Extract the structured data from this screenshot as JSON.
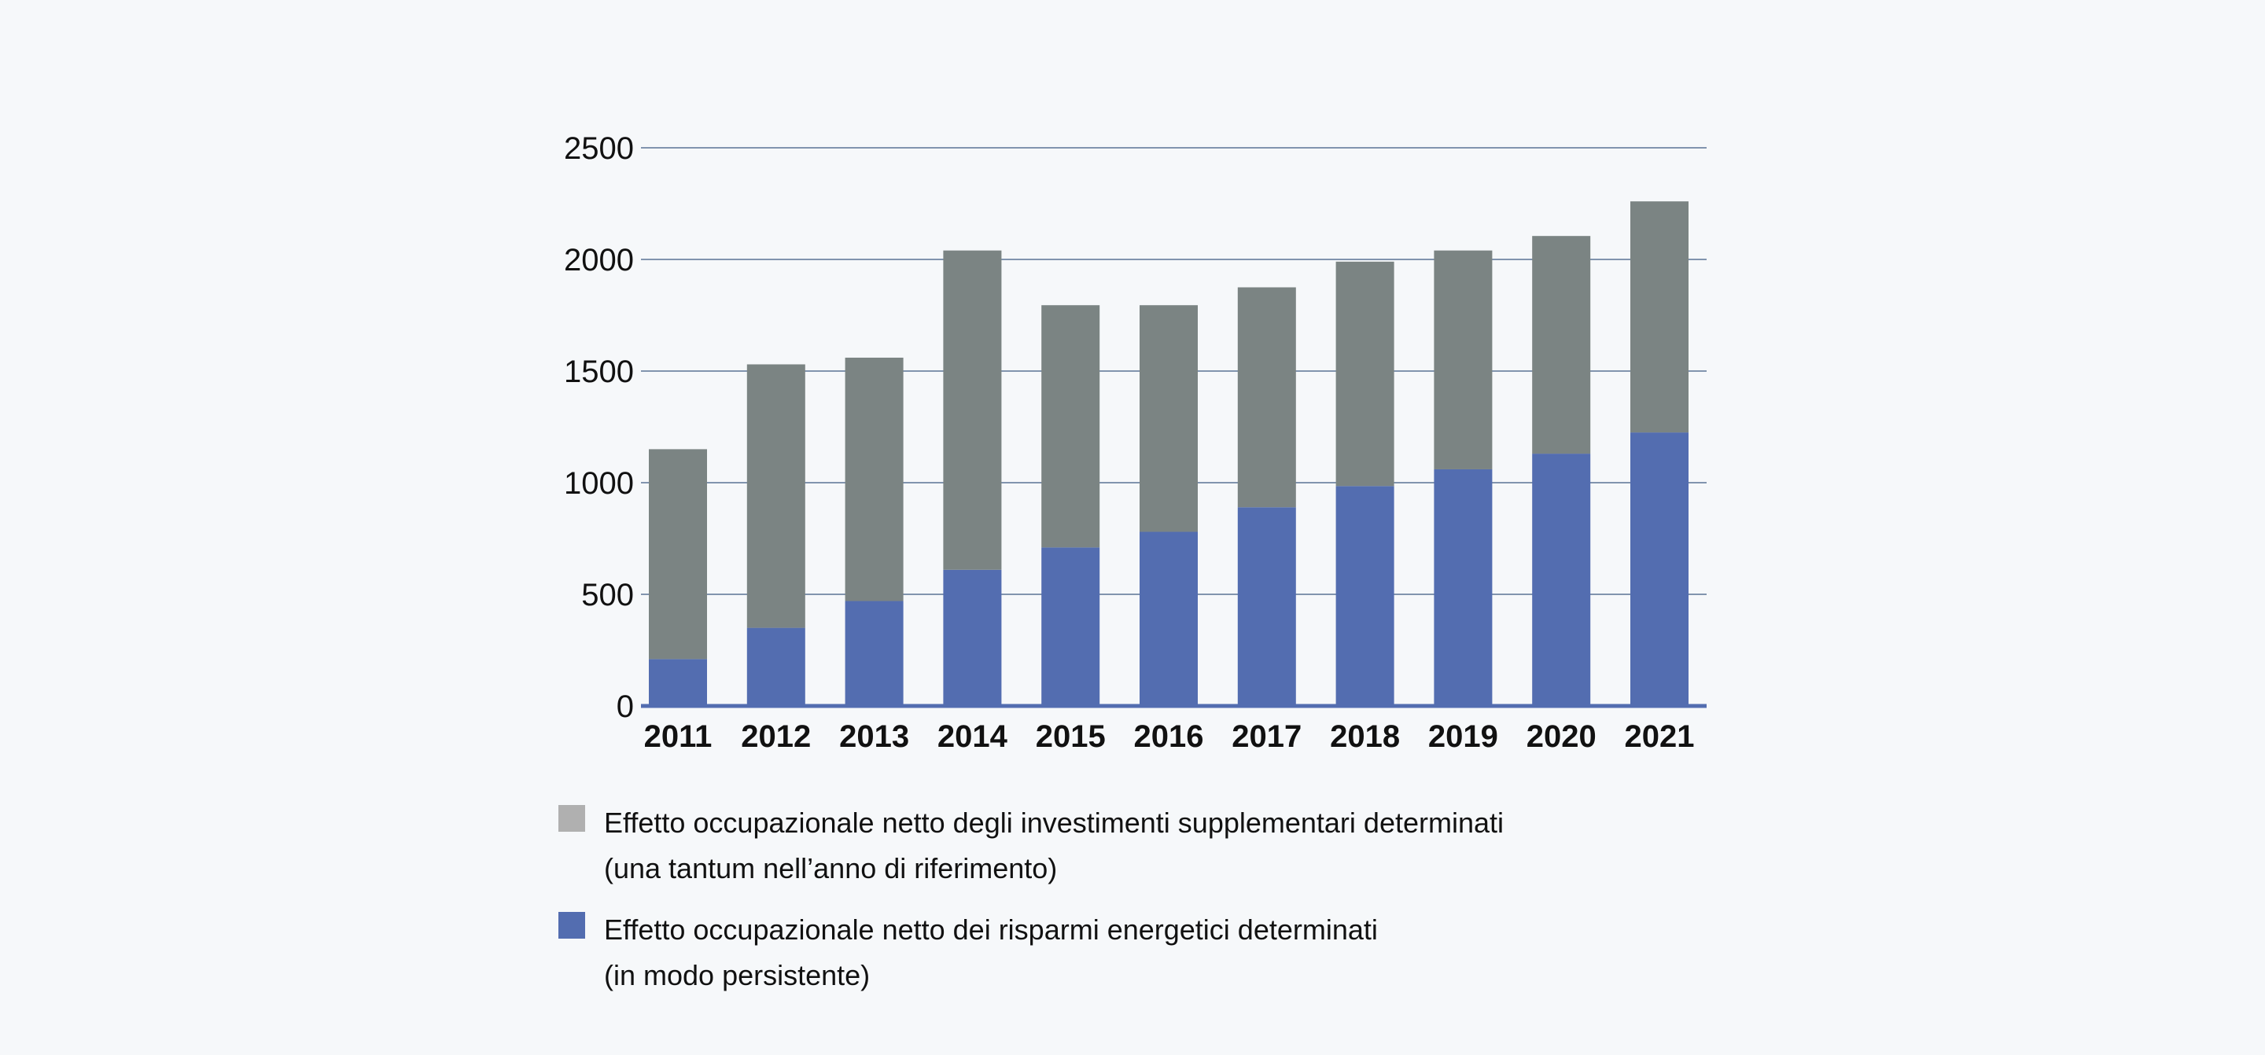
{
  "chart_data": {
    "type": "bar",
    "stacked": true,
    "categories": [
      "2011",
      "2012",
      "2013",
      "2014",
      "2015",
      "2016",
      "2017",
      "2018",
      "2019",
      "2020",
      "2021"
    ],
    "series": [
      {
        "name": "Effetto occupazionale netto dei risparmi energetici determinati (in modo persistente)",
        "color": "#536db0",
        "values": [
          210,
          350,
          470,
          610,
          710,
          780,
          890,
          985,
          1060,
          1130,
          1225
        ]
      },
      {
        "name": "Effetto occupazionale netto degli investimenti supplementari determinati (una tantum nell’anno di riferimento)",
        "color": "#7b8483",
        "values": [
          940,
          1180,
          1090,
          1430,
          1085,
          1015,
          985,
          1005,
          980,
          975,
          1035
        ]
      }
    ],
    "yticks": [
      "0",
      "500",
      "1000",
      "1500",
      "2000",
      "2500"
    ],
    "ylim": [
      0,
      2500
    ],
    "grid": true,
    "legend_position": "bottom-left"
  },
  "legend": {
    "items": [
      {
        "swatch_color": "#b0b0b0",
        "line1": "Effetto occupazionale netto degli investimenti supplementari determinati",
        "line2": "(una tantum nell’anno di riferimento)"
      },
      {
        "swatch_color": "#536db0",
        "line1": "Effetto occupazionale netto dei risparmi energetici determinati",
        "line2": "(in modo persistente)"
      }
    ]
  },
  "colors": {
    "gridline": "#5a7394",
    "baseline": "#536db0",
    "background": "#f6f8fa"
  }
}
